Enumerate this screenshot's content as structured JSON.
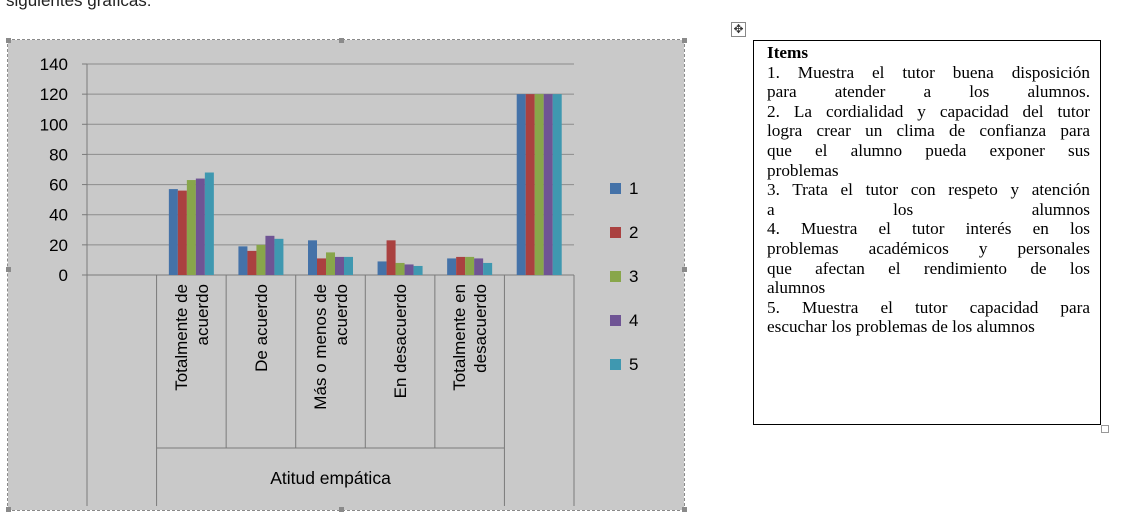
{
  "page": {
    "top_text": "siguientes gráficas:"
  },
  "chart_data": {
    "type": "bar",
    "categories": [
      "",
      "Totalmente de acuerdo",
      "De acuerdo",
      "Más o menos de acuerdo",
      "En desacuerdo",
      "Totalmente en desacuerdo",
      ""
    ],
    "group_label": "Atitud empática",
    "series": [
      {
        "name": "1",
        "color": "#4472a8",
        "values": [
          null,
          57,
          19,
          23,
          9,
          11,
          120
        ]
      },
      {
        "name": "2",
        "color": "#aa4140",
        "values": [
          null,
          56,
          16,
          11,
          23,
          12,
          120
        ]
      },
      {
        "name": "3",
        "color": "#88a64a",
        "values": [
          null,
          63,
          20,
          15,
          8,
          12,
          120
        ]
      },
      {
        "name": "4",
        "color": "#6f5494",
        "values": [
          null,
          64,
          26,
          12,
          7,
          11,
          120
        ]
      },
      {
        "name": "5",
        "color": "#3f98b0",
        "values": [
          null,
          68,
          24,
          12,
          6,
          8,
          120
        ]
      }
    ],
    "yticks": [
      0,
      20,
      40,
      60,
      80,
      100,
      120,
      140
    ],
    "ylim": [
      0,
      140
    ],
    "grid": true,
    "legend_position": "right"
  },
  "items_box": {
    "title": "Items",
    "lines": [
      "1. Muestra el tutor buena disposición",
      "para atender a los alumnos.",
      "2. La cordialidad y capacidad del tutor",
      "logra crear un clima de confianza para",
      "que el alumno pueda exponer sus",
      "problemas",
      "3. Trata el tutor con respeto y atención",
      "a los alumnos",
      "4. Muestra el tutor interés en los",
      "problemas académicos y personales",
      "que afectan el rendimiento de los",
      "alumnos",
      "5. Muestra el tutor capacidad para",
      "escuchar los problemas de los alumnos"
    ]
  },
  "icons": {
    "move_handle": "move-icon",
    "resize_handle": "resize-icon"
  }
}
